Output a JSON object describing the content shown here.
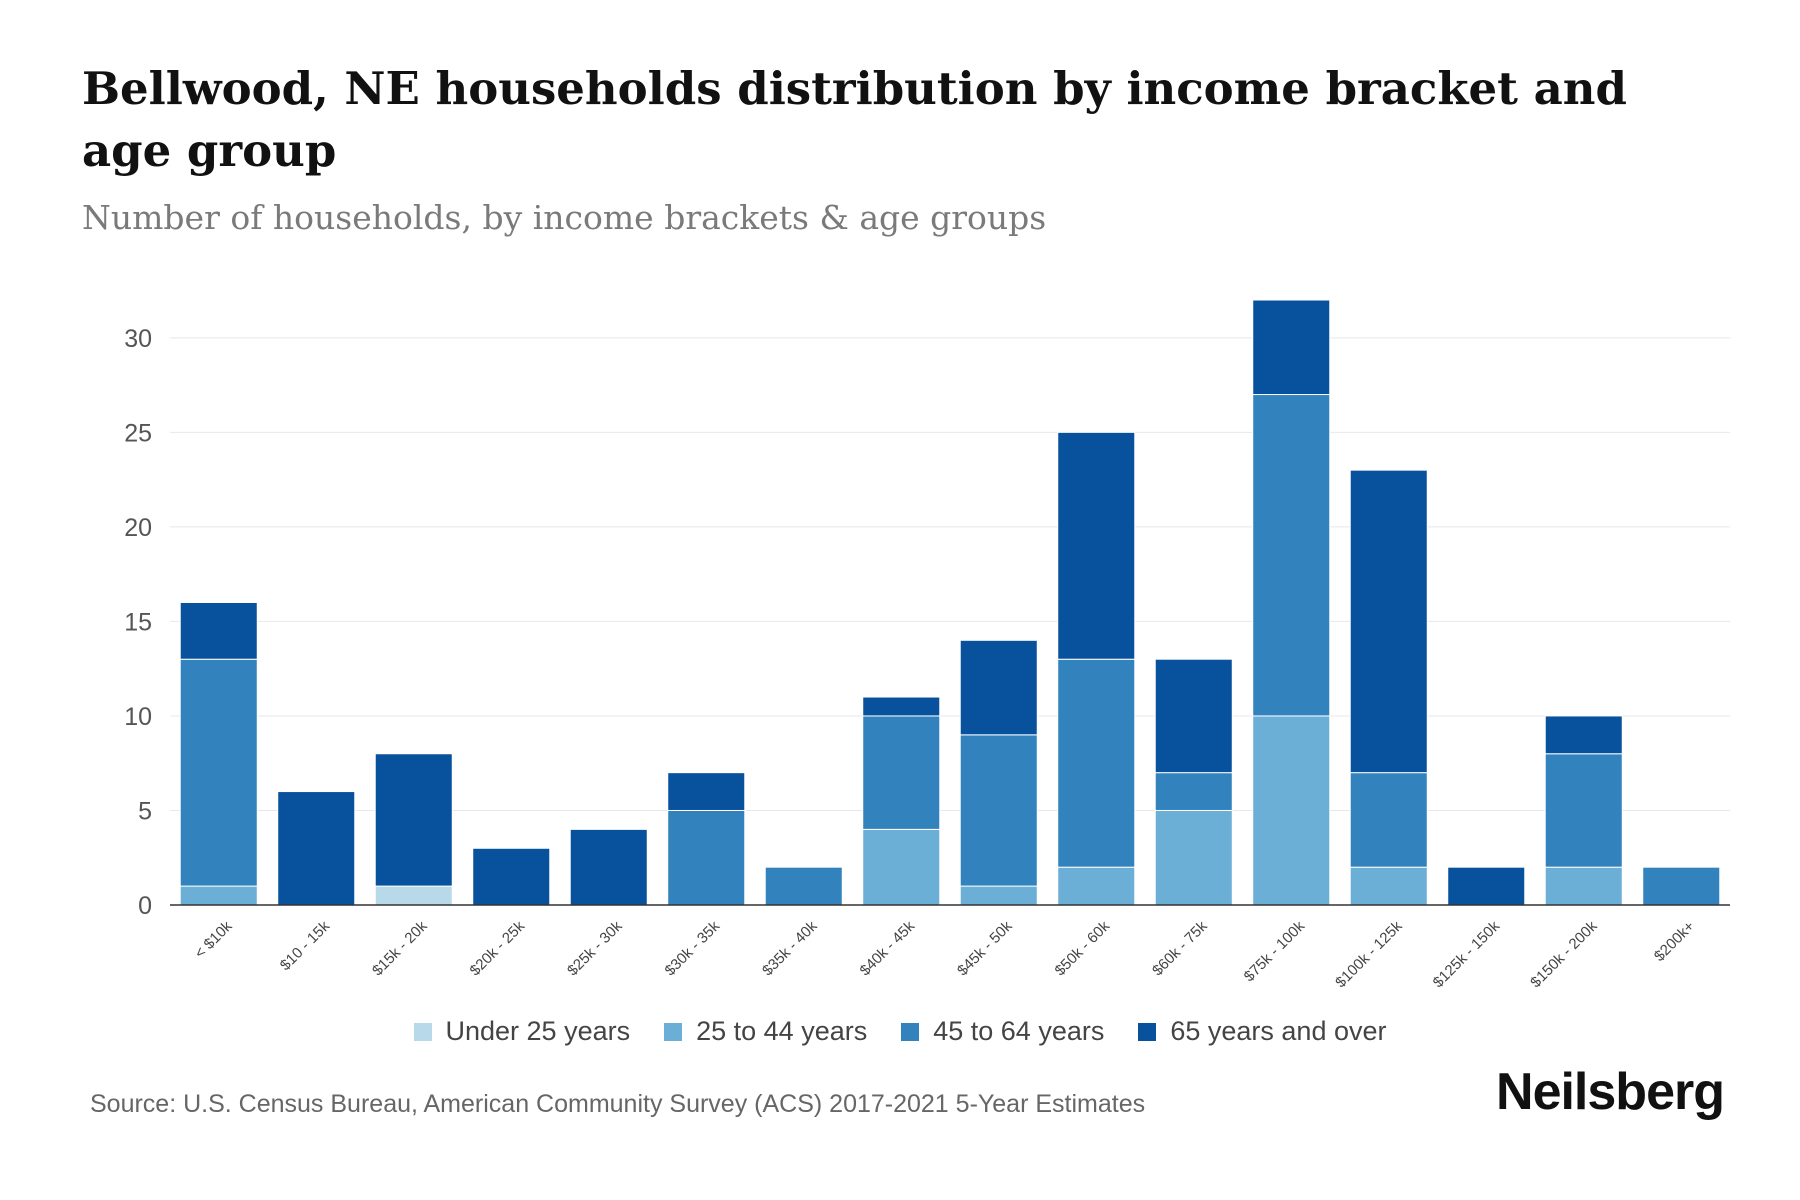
{
  "chart_data": {
    "type": "bar",
    "stacked": true,
    "title": "Bellwood, NE households distribution by income bracket and age group",
    "subtitle": "Number of households, by income brackets & age groups",
    "xlabel": "",
    "ylabel": "",
    "ylim": [
      0,
      32
    ],
    "yticks": [
      0,
      5,
      10,
      15,
      20,
      25,
      30
    ],
    "grid": true,
    "legend_position": "bottom",
    "categories": [
      "< $10k",
      "$10 - 15k",
      "$15k - 20k",
      "$20k - 25k",
      "$25k - 30k",
      "$30k - 35k",
      "$35k - 40k",
      "$40k - 45k",
      "$45k - 50k",
      "$50k - 60k",
      "$60k - 75k",
      "$75k - 100k",
      "$100k - 125k",
      "$125k - 150k",
      "$150k - 200k",
      "$200k+"
    ],
    "series": [
      {
        "name": "Under 25 years",
        "color": "#b8d9ea",
        "values": [
          0,
          0,
          1,
          0,
          0,
          0,
          0,
          0,
          0,
          0,
          0,
          0,
          0,
          0,
          0,
          0
        ]
      },
      {
        "name": "25 to 44 years",
        "color": "#6baed6",
        "values": [
          1,
          0,
          0,
          0,
          0,
          0,
          0,
          4,
          1,
          2,
          5,
          10,
          2,
          0,
          2,
          0
        ]
      },
      {
        "name": "45 to 64 years",
        "color": "#3182bd",
        "values": [
          12,
          0,
          0,
          0,
          0,
          5,
          2,
          6,
          8,
          11,
          2,
          17,
          5,
          0,
          6,
          2
        ]
      },
      {
        "name": "65 years and over",
        "color": "#08519c",
        "values": [
          3,
          6,
          7,
          3,
          4,
          2,
          0,
          1,
          5,
          12,
          6,
          5,
          16,
          2,
          2,
          0
        ]
      }
    ]
  },
  "source": "Source: U.S. Census Bureau, American Community Survey (ACS) 2017-2021 5-Year Estimates",
  "brand": "Neilsberg"
}
